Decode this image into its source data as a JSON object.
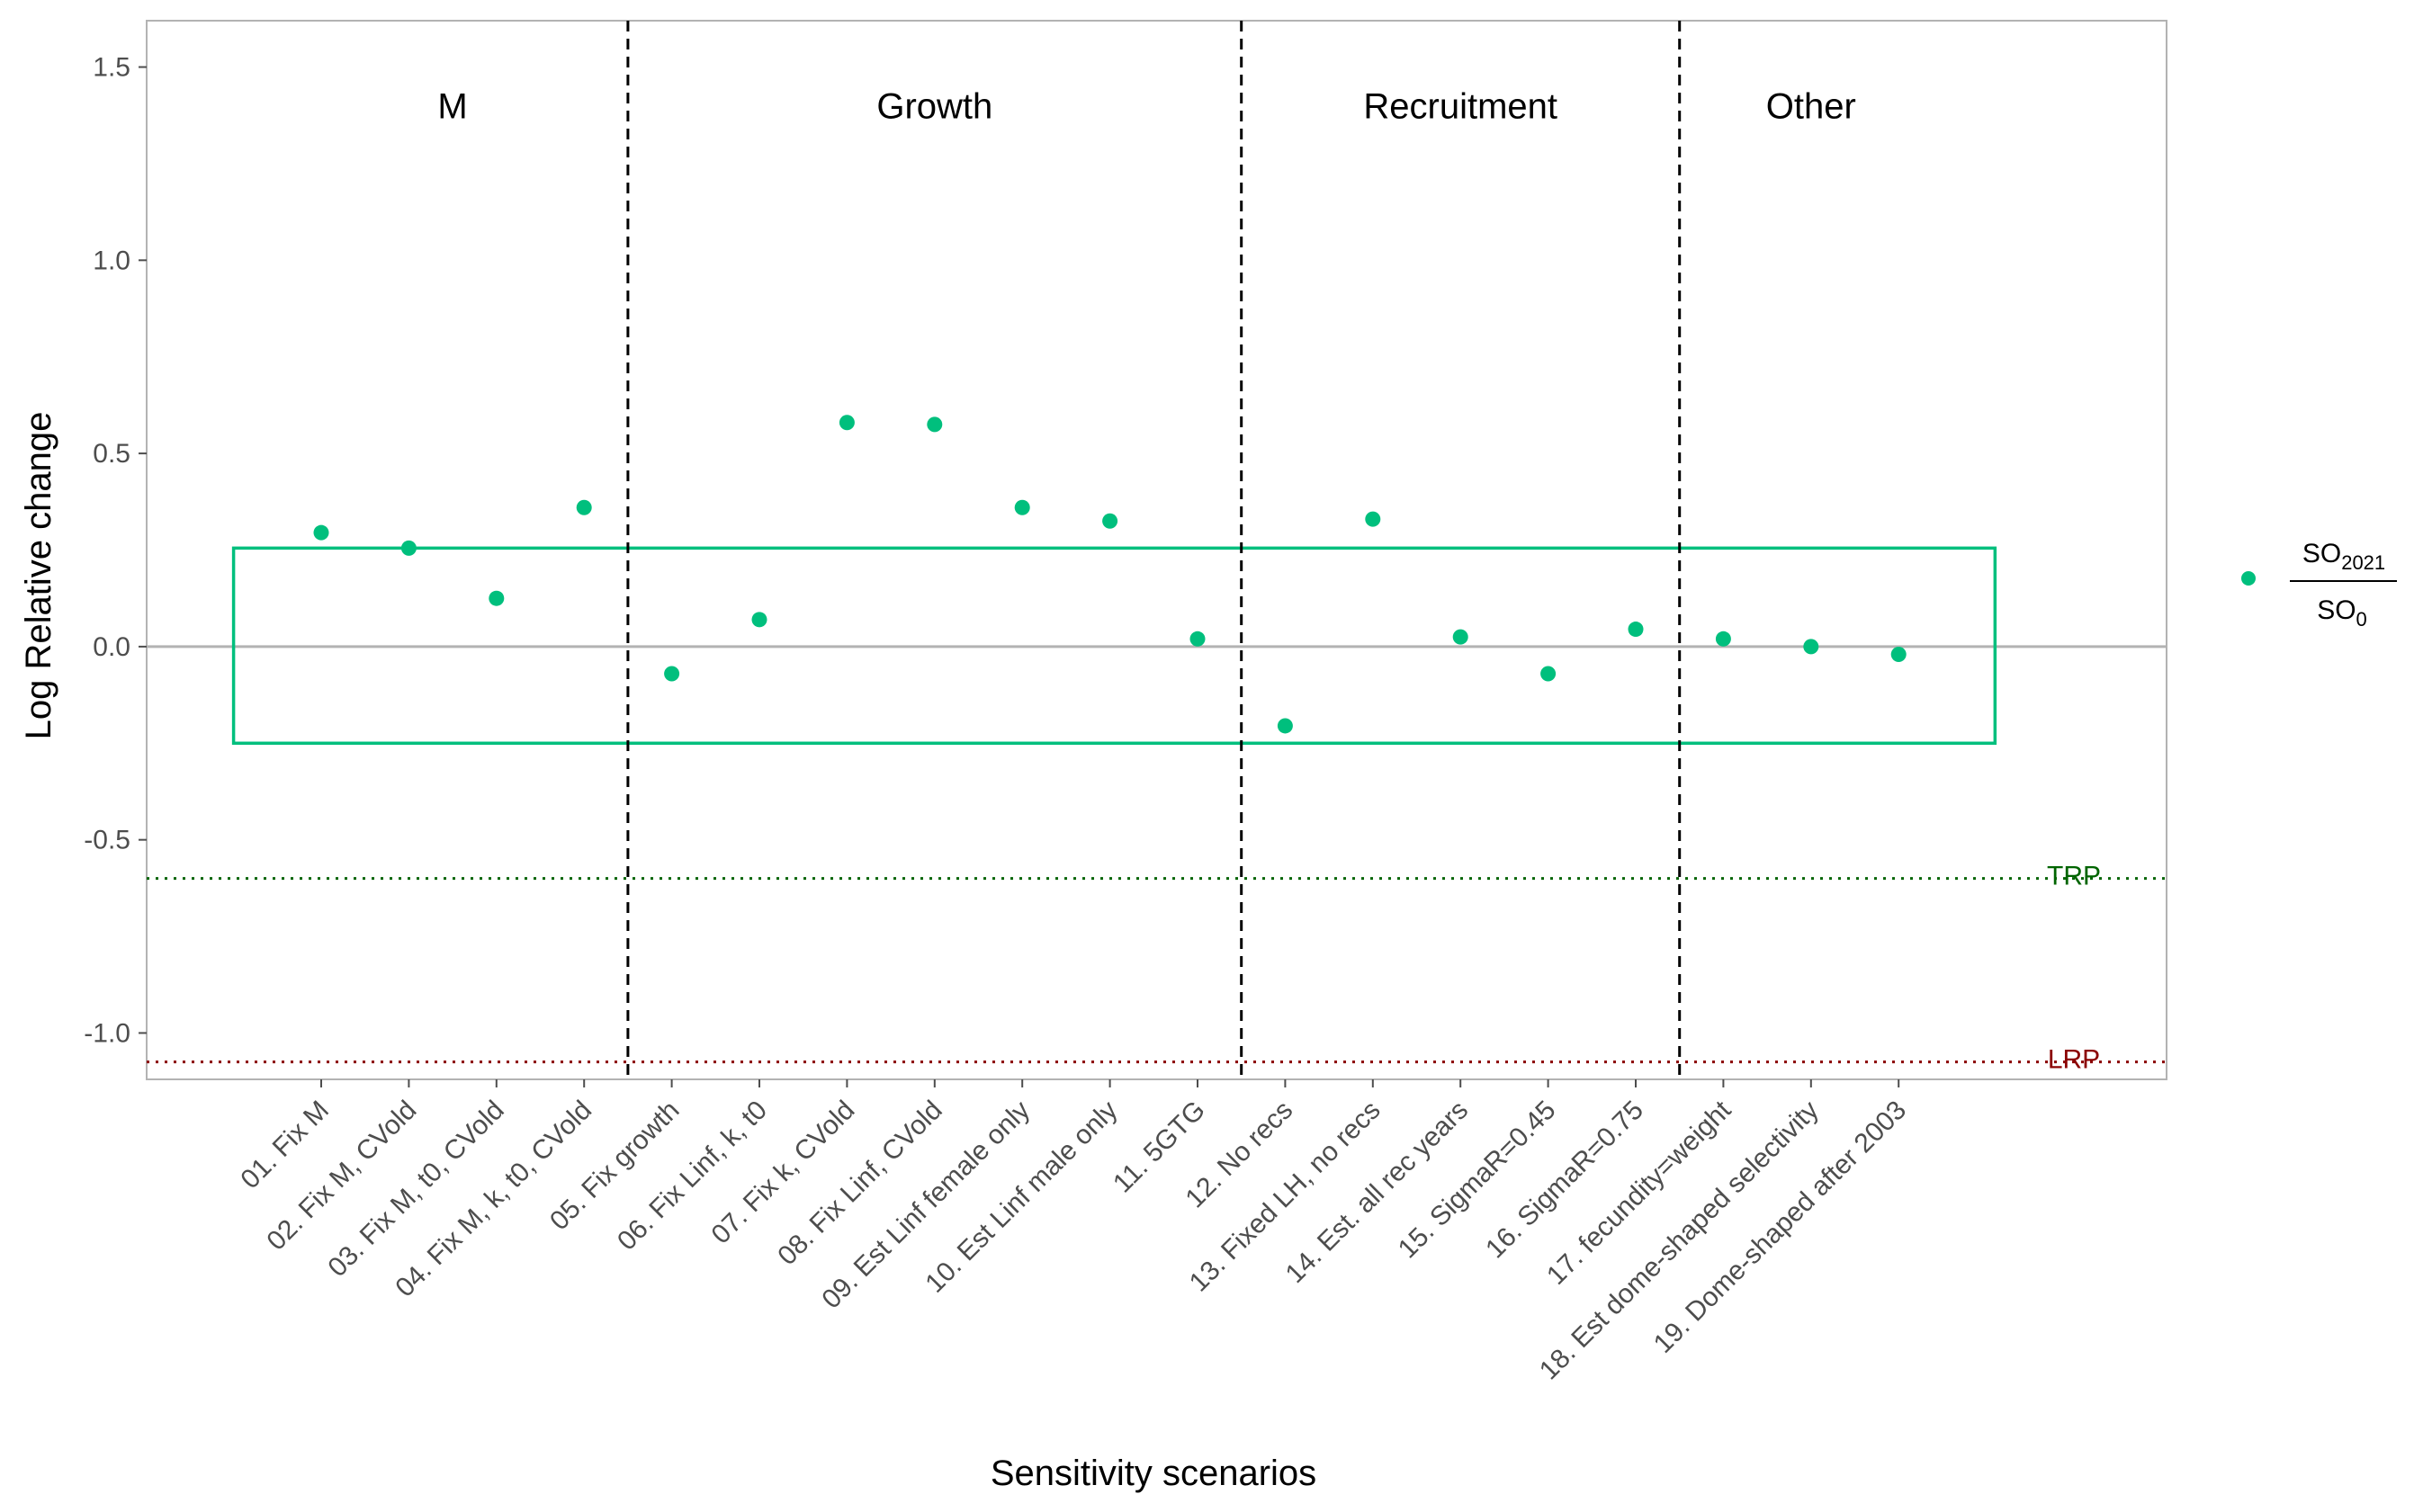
{
  "chart_data": {
    "type": "scatter",
    "title": "",
    "xlabel": "Sensitivity scenarios",
    "ylabel": "Log Relative change",
    "ylim": [
      -1.12,
      1.62
    ],
    "yticks": [
      1.5,
      1.0,
      0.5,
      0.0,
      -0.5,
      -1.0
    ],
    "ytick_labels": [
      "1.5",
      "1.0",
      "0.5",
      "0.0",
      "-0.5",
      "-1.0"
    ],
    "grid": false,
    "categories": [
      "01. Fix M",
      "02. Fix M, CVold",
      "03. Fix M, t0, CVold",
      "04. Fix M, k, t0, CVold",
      "05. Fix growth",
      "06. Fix Linf, k, t0",
      "07. Fix k, CVold",
      "08. Fix Linf, CVold",
      "09. Est Linf female only",
      "10. Est Linf male only",
      "11. 5GTG",
      "12. No recs",
      "13. Fixed LH, no recs",
      "14. Est. all rec years",
      "15. SigmaR=0.45",
      "16. SigmaR=0.75",
      "17. fecundity=weight",
      "18. Est dome-shaped selectivity",
      "19. Dome-shaped after 2003"
    ],
    "series": [
      {
        "legend_numerator": "SO",
        "legend_numerator_sub": "2021",
        "legend_denominator": "SO",
        "legend_denominator_sub": "0",
        "color": "#00BF7D",
        "values": [
          0.295,
          0.255,
          0.125,
          0.36,
          -0.07,
          0.07,
          0.58,
          0.575,
          0.36,
          0.325,
          0.02,
          -0.205,
          0.33,
          0.025,
          -0.07,
          0.045,
          0.02,
          0.0,
          -0.02
        ]
      }
    ],
    "groups": [
      {
        "label": "M",
        "from_index": 0,
        "to_index": 3
      },
      {
        "label": "Growth",
        "from_index": 4,
        "to_index": 10
      },
      {
        "label": "Recruitment",
        "from_index": 11,
        "to_index": 15
      },
      {
        "label": "Other",
        "from_index": 16,
        "to_index": 18
      }
    ],
    "group_dividers_after_index": [
      3,
      10,
      15
    ],
    "zero_line": {
      "y": 0.0,
      "color": "#b3b3b3"
    },
    "band": {
      "ymin": -0.25,
      "ymax": 0.255,
      "from_index": -1.0,
      "to_index": 19.1,
      "color": "#00BF7D"
    },
    "reference_lines": [
      {
        "label": "TRP",
        "y": -0.6,
        "color": "#006400",
        "style": "dotted"
      },
      {
        "label": "LRP",
        "y": -1.075,
        "color": "#8B0000",
        "style": "dotted"
      }
    ],
    "legend_position": "right"
  }
}
